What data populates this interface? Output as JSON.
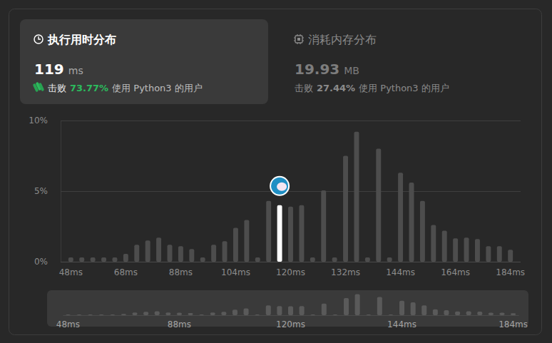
{
  "header": {
    "tabs": [
      {
        "title": "执行用时分布",
        "value": "119",
        "unit": "ms",
        "beat_label": "击败",
        "beat": "73.77%",
        "suffix": "使用 Python3 的用户"
      },
      {
        "title": "消耗内存分布",
        "value": "19.93",
        "unit": "MB",
        "beat_label": "击败",
        "beat": "27.44%",
        "suffix": "使用 Python3 的用户"
      }
    ]
  },
  "chart_data": [
    {
      "type": "bar",
      "categories": [
        "48ms",
        null,
        null,
        null,
        null,
        "68ms",
        null,
        null,
        null,
        null,
        "88ms",
        null,
        null,
        null,
        null,
        "104ms",
        null,
        null,
        null,
        null,
        "120ms",
        null,
        null,
        null,
        null,
        "132ms",
        null,
        null,
        null,
        null,
        "144ms",
        null,
        null,
        null,
        null,
        "164ms",
        null,
        null,
        null,
        null,
        "184ms"
      ],
      "values": [
        0.3,
        0.3,
        0.3,
        0.3,
        0.3,
        0.55,
        1.2,
        1.5,
        1.7,
        1.2,
        1.1,
        0.9,
        0.3,
        1.2,
        1.45,
        2.4,
        2.95,
        0.3,
        4.3,
        4.0,
        3.9,
        4.0,
        0.3,
        5.05,
        0.3,
        7.5,
        9.2,
        0.3,
        8.0,
        0.3,
        6.3,
        5.6,
        4.3,
        2.6,
        2.2,
        1.65,
        1.7,
        1.6,
        1.1,
        1.1,
        0.85
      ],
      "colors": [
        "#4d4d4d",
        "#4d4d4d",
        "#4d4d4d",
        "#4d4d4d",
        "#4d4d4d",
        "#4d4d4d",
        "#4d4d4d",
        "#4d4d4d",
        "#4d4d4d",
        "#4d4d4d",
        "#4d4d4d",
        "#4d4d4d",
        "#4d4d4d",
        "#4d4d4d",
        "#4d4d4d",
        "#4d4d4d",
        "#4d4d4d",
        "#4d4d4d",
        "#4d4d4d",
        "#ffffff",
        "#4d4d4d",
        "#4d4d4d",
        "#4d4d4d",
        "#4d4d4d",
        "#4d4d4d",
        "#4d4d4d",
        "#4d4d4d",
        "#4d4d4d",
        "#4d4d4d",
        "#4d4d4d",
        "#4d4d4d",
        "#4d4d4d",
        "#4d4d4d",
        "#4d4d4d",
        "#4d4d4d",
        "#4d4d4d",
        "#4d4d4d",
        "#4d4d4d",
        "#4d4d4d",
        "#4d4d4d",
        "#4d4d4d"
      ],
      "ylim": [
        0,
        10
      ],
      "yticks": [
        {
          "value": 0,
          "label": "0%"
        },
        {
          "value": 5,
          "label": "5%"
        },
        {
          "value": 10,
          "label": "10%"
        }
      ],
      "grid": true
    },
    {
      "type": "bar",
      "categories": [
        "48ms",
        null,
        null,
        null,
        null,
        null,
        null,
        null,
        null,
        null,
        "88ms",
        null,
        null,
        null,
        null,
        null,
        null,
        null,
        null,
        null,
        "120ms",
        null,
        null,
        null,
        null,
        null,
        null,
        null,
        null,
        null,
        "144ms",
        null,
        null,
        null,
        null,
        null,
        null,
        null,
        null,
        null,
        "184ms"
      ],
      "values": [
        0.3,
        0.3,
        0.3,
        0.3,
        0.3,
        0.55,
        1.2,
        1.5,
        1.7,
        1.2,
        1.1,
        0.9,
        0.3,
        1.2,
        1.45,
        2.4,
        2.95,
        0.3,
        4.3,
        4.0,
        3.9,
        4.0,
        0.3,
        5.05,
        0.3,
        7.5,
        9.2,
        0.3,
        8.0,
        0.3,
        6.3,
        5.6,
        4.3,
        2.6,
        2.2,
        1.65,
        1.7,
        1.6,
        1.1,
        1.1,
        0.85
      ],
      "color": "#5a5a5a",
      "ylim": [
        0,
        10
      ],
      "grid": false,
      "tick_labels": "x"
    }
  ]
}
